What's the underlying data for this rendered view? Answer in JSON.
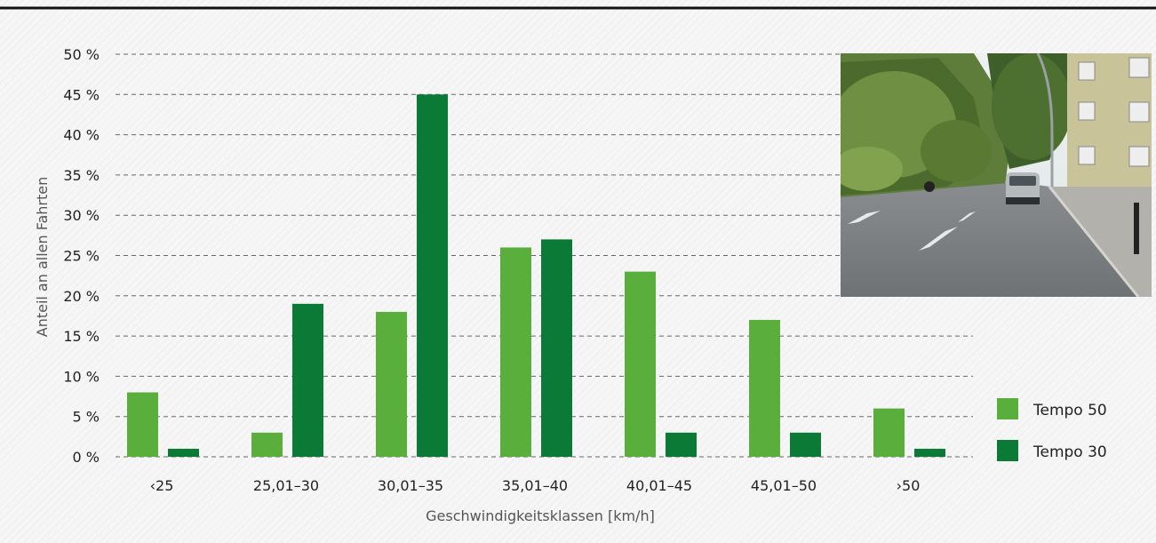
{
  "chart_data": {
    "type": "bar",
    "categories": [
      "‹25",
      "25,01–30",
      "30,01–35",
      "35,01–40",
      "40,01–45",
      "45,01–50",
      "›50"
    ],
    "series": [
      {
        "name": "Tempo 50",
        "color": "#5aae3c",
        "values": [
          8,
          3,
          18,
          26,
          23,
          17,
          6
        ]
      },
      {
        "name": "Tempo 30",
        "color": "#0b7a36",
        "values": [
          1,
          19,
          45,
          27,
          3,
          3,
          1
        ]
      }
    ],
    "xlabel": "Geschwindigkeitsklassen [km/h]",
    "ylabel": "Anteil an allen Fahrten",
    "ylim": [
      0,
      50
    ],
    "yticks": [
      0,
      5,
      10,
      15,
      20,
      25,
      30,
      35,
      40,
      45,
      50
    ],
    "ytick_suffix": " %",
    "grid": true,
    "legend": "right"
  },
  "photo": {
    "icon": "street-photo-icon"
  }
}
